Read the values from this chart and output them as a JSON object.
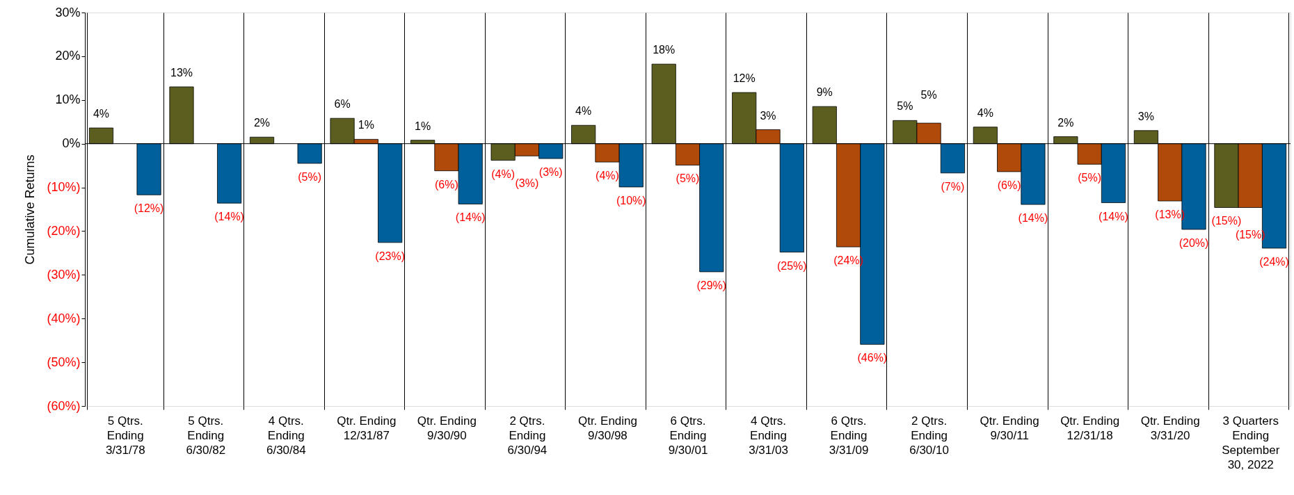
{
  "chart_data": {
    "type": "bar",
    "ylabel": "Cumulative Returns",
    "categories": [
      [
        "5 Qtrs.",
        "Ending",
        "3/31/78"
      ],
      [
        "5 Qtrs.",
        "Ending",
        "6/30/82"
      ],
      [
        "4 Qtrs.",
        "Ending",
        "6/30/84"
      ],
      [
        "Qtr. Ending",
        "12/31/87"
      ],
      [
        "Qtr. Ending",
        "9/30/90"
      ],
      [
        "2 Qtrs.",
        "Ending",
        "6/30/94"
      ],
      [
        "Qtr. Ending",
        "9/30/98"
      ],
      [
        "6 Qtrs.",
        "Ending",
        "9/30/01"
      ],
      [
        "4 Qtrs.",
        "Ending",
        "3/31/03"
      ],
      [
        "6 Qtrs.",
        "Ending",
        "3/31/09"
      ],
      [
        "2 Qtrs.",
        "Ending",
        "6/30/10"
      ],
      [
        "Qtr. Ending",
        "9/30/11"
      ],
      [
        "Qtr. Ending",
        "12/31/18"
      ],
      [
        "Qtr. Ending",
        "3/31/20"
      ],
      [
        "3 Quarters",
        "Ending",
        "September",
        "30, 2022"
      ]
    ],
    "series": [
      {
        "color": "#5b5e1f",
        "values": [
          3.6,
          13.0,
          1.5,
          5.8,
          0.8,
          -3.8,
          4.2,
          18.2,
          11.7,
          8.5,
          5.3,
          3.8,
          1.6,
          3.0,
          -14.6
        ],
        "value_labels": [
          "4%",
          "13%",
          "2%",
          "6%",
          "1%",
          "(4%)",
          "4%",
          "18%",
          "12%",
          "9%",
          "5%",
          "4%",
          "2%",
          "3%",
          "(15%)"
        ]
      },
      {
        "color": "#b04a0a",
        "values": [
          null,
          null,
          null,
          1.0,
          -6.2,
          -2.8,
          -4.2,
          -4.9,
          3.2,
          -23.6,
          4.7,
          -6.4,
          -4.7,
          -13.1,
          -14.6
        ],
        "value_labels": [
          null,
          null,
          null,
          "1%",
          "(6%)",
          "(3%)",
          "(4%)",
          "(5%)",
          "3%",
          "(24%)",
          "5%",
          "(6%)",
          "(5%)",
          "(13%)",
          "(15%)"
        ]
      },
      {
        "color": "#00609c",
        "values": [
          -11.7,
          -13.6,
          -4.5,
          -22.6,
          -13.8,
          -3.4,
          -9.9,
          -29.3,
          -24.8,
          -45.9,
          -6.7,
          -13.9,
          -13.5,
          -19.6,
          -23.9
        ],
        "value_labels": [
          "(12%)",
          "(14%)",
          "(5%)",
          "(23%)",
          "(14%)",
          "(3%)",
          "(10%)",
          "(29%)",
          "(25%)",
          "(46%)",
          "(7%)",
          "(14%)",
          "(14%)",
          "(20%)",
          "(24%)"
        ]
      }
    ],
    "ylim": [
      -60,
      30
    ],
    "yticks": [
      {
        "value": -60,
        "label": "(60%)"
      },
      {
        "value": -50,
        "label": "(50%)"
      },
      {
        "value": -40,
        "label": "(40%)"
      },
      {
        "value": -30,
        "label": "(30%)"
      },
      {
        "value": -20,
        "label": "(20%)"
      },
      {
        "value": -10,
        "label": "(10%)"
      },
      {
        "value": 0,
        "label": "0%"
      },
      {
        "value": 10,
        "label": "10%"
      },
      {
        "value": 20,
        "label": "20%"
      },
      {
        "value": 30,
        "label": "30%"
      }
    ],
    "grid": "x",
    "ref_lines": [
      {
        "axis": "y",
        "value": 0,
        "color": "#000000"
      }
    ]
  }
}
